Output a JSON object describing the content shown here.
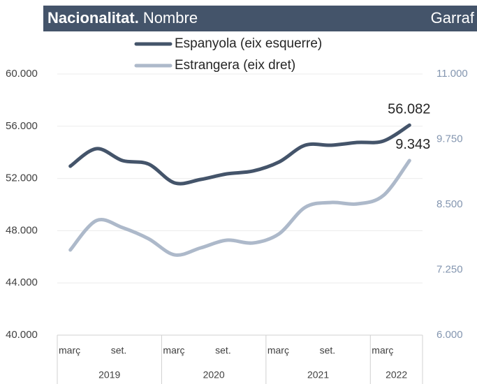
{
  "chart_data": {
    "type": "line",
    "title": "Nacionalitat.",
    "subtitle": "Nombre",
    "annotation": "Garraf",
    "categories": [
      "març",
      null,
      "set.",
      null,
      "març",
      null,
      "set.",
      null,
      "març",
      null,
      "set.",
      null,
      "març",
      null
    ],
    "years": [
      "2019",
      "2020",
      "2021",
      "2022"
    ],
    "series": [
      {
        "name": "Espanyola (eix esquerre)",
        "color": "#44546a",
        "axis": "y",
        "values": [
          52941,
          54278,
          53369,
          53102,
          51658,
          51925,
          52353,
          52567,
          53262,
          54545,
          54545,
          54759,
          54866,
          56082
        ],
        "value_labels": [
          null,
          null,
          null,
          null,
          null,
          null,
          null,
          null,
          null,
          null,
          null,
          null,
          null,
          "56.082"
        ]
      },
      {
        "name": "Estrangera (eix dret)",
        "color": "#adb9ca",
        "axis": "y2",
        "values": [
          7631,
          8193,
          8059,
          7845,
          7537,
          7671,
          7818,
          7765,
          7939,
          8447,
          8540,
          8513,
          8674,
          9343
        ],
        "value_labels": [
          null,
          null,
          null,
          null,
          null,
          null,
          null,
          null,
          null,
          null,
          null,
          null,
          null,
          "9.343"
        ]
      }
    ],
    "ylim": [
      40000,
      60000
    ],
    "yticks": [
      {
        "value": 40000,
        "label": "40.000"
      },
      {
        "value": 44000,
        "label": "44.000"
      },
      {
        "value": 48000,
        "label": "48.000"
      },
      {
        "value": 52000,
        "label": "52.000"
      },
      {
        "value": 56000,
        "label": "56.000"
      },
      {
        "value": 60000,
        "label": "60.000"
      }
    ],
    "y2lim": [
      6000,
      11000
    ],
    "y2ticks": [
      {
        "value": 6000,
        "label": "6.000"
      },
      {
        "value": 7250,
        "label": "7.250"
      },
      {
        "value": 8500,
        "label": "8.500"
      },
      {
        "value": 9750,
        "label": "9.750"
      },
      {
        "value": 11000,
        "label": "11.000"
      }
    ],
    "grid": true
  }
}
